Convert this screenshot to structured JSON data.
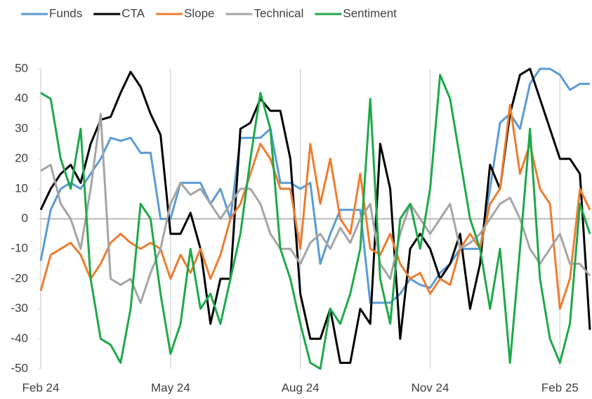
{
  "chart_data": {
    "type": "line",
    "categories": [
      "Feb 24",
      null,
      null,
      null,
      null,
      null,
      null,
      null,
      null,
      null,
      null,
      null,
      null,
      "May 24",
      null,
      null,
      null,
      null,
      null,
      null,
      null,
      null,
      null,
      null,
      null,
      null,
      "Aug 24",
      null,
      null,
      null,
      null,
      null,
      null,
      null,
      null,
      null,
      null,
      null,
      null,
      "Nov 24",
      null,
      null,
      null,
      null,
      null,
      null,
      null,
      null,
      null,
      null,
      null,
      null,
      "Feb 25",
      null,
      null,
      null
    ],
    "series": [
      {
        "name": "Funds",
        "color": "#5b9bd5",
        "values": [
          -14,
          3,
          10,
          12,
          10,
          15,
          20,
          27,
          26,
          27,
          22,
          22,
          0,
          0,
          12,
          12,
          12,
          5,
          10,
          0,
          27,
          27,
          27,
          30,
          12,
          12,
          10,
          12,
          -15,
          -5,
          3,
          3,
          3,
          -28,
          -28,
          -28,
          -25,
          -20,
          -22,
          -23,
          -18,
          -15,
          -10,
          -10,
          -10,
          10,
          32,
          35,
          30,
          45,
          50,
          50,
          48,
          43,
          45,
          45
        ]
      },
      {
        "name": "CTA",
        "color": "#000000",
        "values": [
          3,
          10,
          15,
          18,
          12,
          25,
          33,
          34,
          42,
          49,
          44,
          35,
          28,
          -5,
          -5,
          2,
          -10,
          -35,
          -20,
          -20,
          30,
          32,
          40,
          36,
          36,
          20,
          -25,
          -40,
          -40,
          -30,
          -48,
          -48,
          -30,
          -35,
          25,
          10,
          -40,
          -10,
          -5,
          -10,
          -20,
          -15,
          -5,
          -30,
          -15,
          18,
          10,
          35,
          48,
          50,
          40,
          30,
          20,
          20,
          15,
          -37
        ]
      },
      {
        "name": "Slope",
        "color": "#ed7d31",
        "values": [
          -24,
          -12,
          -10,
          -8,
          -12,
          -20,
          -15,
          -8,
          -5,
          -8,
          -10,
          -8,
          -10,
          -20,
          -12,
          -18,
          -10,
          -20,
          -12,
          0,
          5,
          15,
          25,
          20,
          10,
          10,
          -10,
          25,
          5,
          20,
          0,
          -5,
          15,
          -10,
          -12,
          -5,
          -15,
          -20,
          -18,
          -25,
          -20,
          -22,
          -10,
          -5,
          -10,
          5,
          10,
          38,
          15,
          25,
          10,
          5,
          -30,
          -20,
          10,
          3
        ]
      },
      {
        "name": "Technical",
        "color": "#a5a5a5",
        "values": [
          16,
          18,
          5,
          0,
          -10,
          10,
          35,
          -20,
          -22,
          -20,
          -28,
          -18,
          -10,
          5,
          12,
          8,
          10,
          5,
          0,
          5,
          10,
          10,
          5,
          -5,
          -10,
          -10,
          -15,
          -8,
          -5,
          -10,
          -3,
          -8,
          0,
          5,
          -15,
          -20,
          -5,
          5,
          0,
          -5,
          0,
          5,
          -10,
          -8,
          -5,
          0,
          5,
          7,
          0,
          -10,
          -15,
          -10,
          -5,
          -15,
          -15,
          -19
        ]
      },
      {
        "name": "Sentiment",
        "color": "#1fa84a",
        "values": [
          42,
          40,
          20,
          10,
          30,
          -20,
          -40,
          -42,
          -48,
          -30,
          5,
          0,
          -25,
          -45,
          -35,
          -10,
          -30,
          -25,
          -35,
          -20,
          -5,
          20,
          42,
          30,
          -10,
          -20,
          -35,
          -48,
          -50,
          -30,
          -35,
          -25,
          -10,
          40,
          -20,
          -35,
          0,
          5,
          -10,
          10,
          48,
          40,
          20,
          0,
          -10,
          -30,
          -10,
          -48,
          -10,
          30,
          -20,
          -40,
          -48,
          -35,
          5,
          -5
        ]
      }
    ],
    "ylim": [
      -50,
      50
    ],
    "yticks": [
      -50,
      -40,
      -30,
      -20,
      -10,
      0,
      10,
      20,
      30,
      40,
      50
    ],
    "legend": "top"
  }
}
